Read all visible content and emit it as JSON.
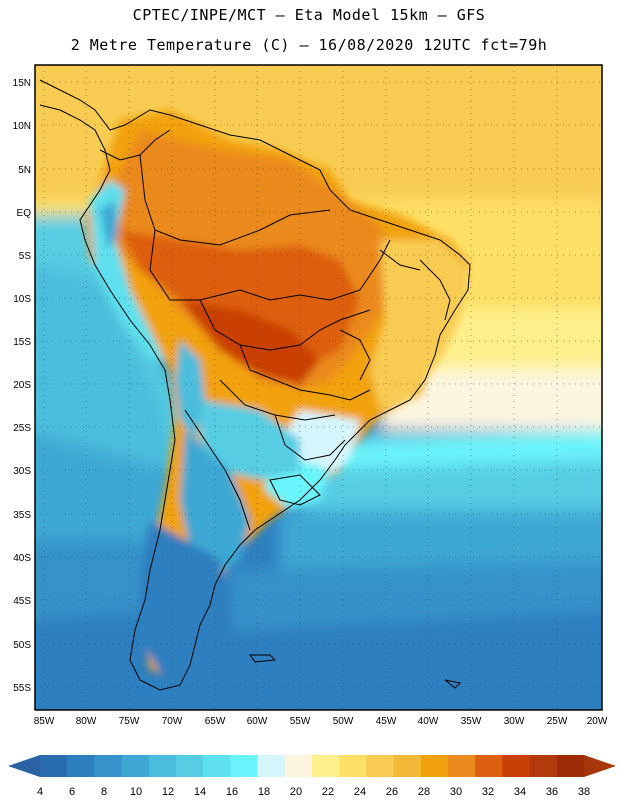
{
  "header": {
    "line1": "CPTEC/INPE/MCT –  Eta Model 15km – GFS",
    "line2": "2 Metre Temperature (C) – 16/08/2020 12UTC fct=79h"
  },
  "map": {
    "lat_labels": [
      "15N",
      "10N",
      "5N",
      "EQ",
      "5S",
      "10S",
      "15S",
      "20S",
      "25S",
      "30S",
      "35S",
      "40S",
      "45S",
      "50S",
      "55S"
    ],
    "lon_labels": [
      "85W",
      "80W",
      "75W",
      "70W",
      "65W",
      "60W",
      "55W",
      "50W",
      "45W",
      "40W",
      "35W",
      "30W",
      "25W",
      "20W"
    ],
    "regions": [
      {
        "name": "amazon-hot-core",
        "temp_c": 36
      },
      {
        "name": "central-brazil",
        "temp_c": 34
      },
      {
        "name": "northeast-brazil",
        "temp_c": 30
      },
      {
        "name": "caribbean-sea",
        "temp_c": 28
      },
      {
        "name": "equatorial-atlantic",
        "temp_c": 26
      },
      {
        "name": "southern-brazil",
        "temp_c": 18
      },
      {
        "name": "south-atlantic-mid",
        "temp_c": 14
      },
      {
        "name": "south-pacific",
        "temp_c": 12
      },
      {
        "name": "patagonia",
        "temp_c": 6
      },
      {
        "name": "southern-ocean",
        "temp_c": 6
      },
      {
        "name": "andes-highlands",
        "temp_c": 12
      }
    ]
  },
  "colorbar": {
    "labels": [
      "4",
      "6",
      "8",
      "10",
      "12",
      "14",
      "16",
      "18",
      "20",
      "22",
      "24",
      "26",
      "28",
      "30",
      "32",
      "34",
      "36",
      "38"
    ],
    "colors": [
      "#2a6cb0",
      "#2e7fbf",
      "#3593c9",
      "#3ea8d3",
      "#4bbddc",
      "#56cde3",
      "#5ee0ee",
      "#6af4fb",
      "#d6f6fd",
      "#fdf5e0",
      "#fdf08c",
      "#fde066",
      "#f8cc52",
      "#f3b938",
      "#f2a20c",
      "#eb8a1e",
      "#dd5f10",
      "#c94004",
      "#b33a0c",
      "#9c2d08"
    ],
    "under_color": "#2b62a3",
    "over_color": "#a8360c"
  }
}
